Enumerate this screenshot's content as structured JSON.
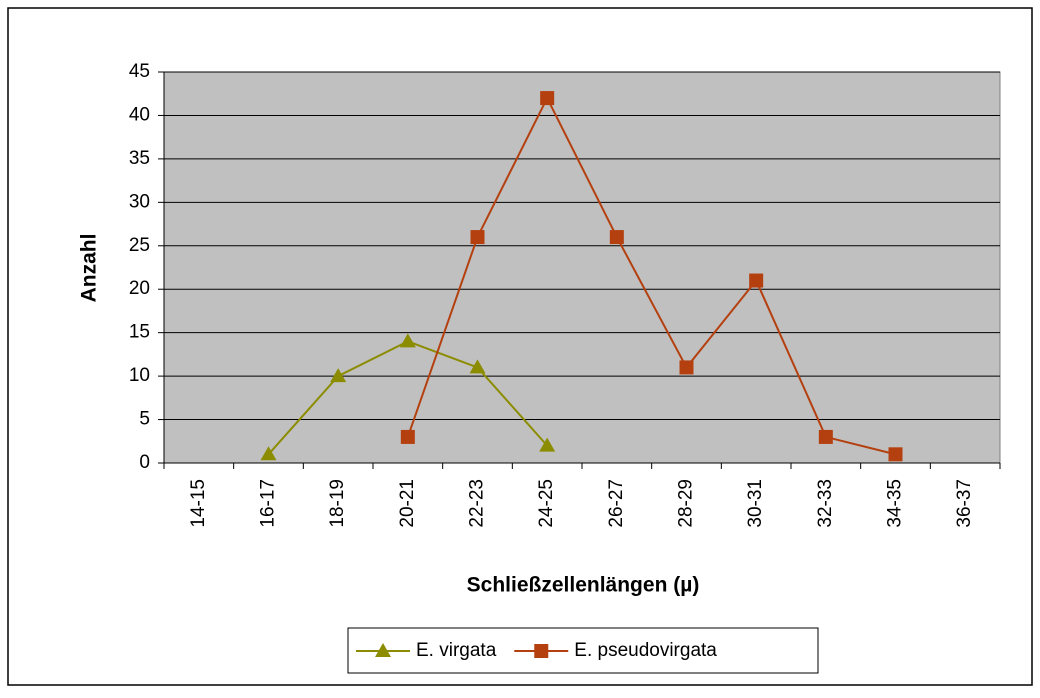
{
  "chart_data": {
    "type": "line",
    "xlabel": "Schließzellenlängen (µ)",
    "ylabel": "Anzahl",
    "categories": [
      "14-15",
      "16-17",
      "18-19",
      "20-21",
      "22-23",
      "24-25",
      "26-27",
      "28-29",
      "30-31",
      "32-33",
      "34-35",
      "36-37"
    ],
    "series": [
      {
        "name": "E. virgata",
        "color": "#8c8c00",
        "marker": "triangle",
        "values": [
          null,
          1,
          10,
          14,
          11,
          2,
          null,
          null,
          null,
          null,
          null,
          null
        ]
      },
      {
        "name": "E. pseudovirgata",
        "color": "#b5400f",
        "marker": "square",
        "values": [
          null,
          null,
          null,
          3,
          26,
          42,
          26,
          11,
          21,
          3,
          1,
          null
        ]
      }
    ],
    "ylim": [
      0,
      45
    ],
    "yticks": [
      0,
      5,
      10,
      15,
      20,
      25,
      30,
      35,
      40,
      45
    ],
    "grid": true,
    "plot_background": "#c0c0c0",
    "legend": "bottom"
  }
}
